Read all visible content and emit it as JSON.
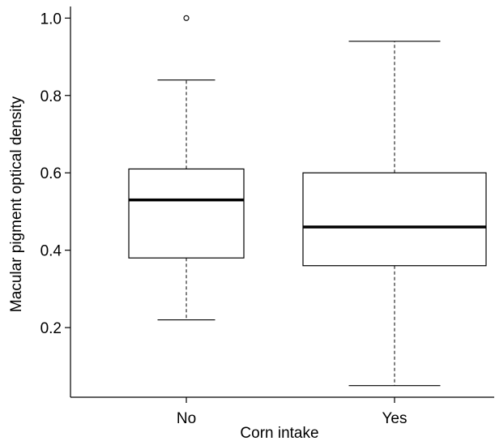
{
  "chart_data": {
    "type": "box",
    "xlabel": "Corn intake",
    "ylabel": "Macular pigment optical density",
    "ylim": [
      0.02,
      1.03
    ],
    "yticks": [
      0.2,
      0.4,
      0.6,
      0.8,
      1.0
    ],
    "ytick_labels": [
      "0.2",
      "0.4",
      "0.6",
      "0.8",
      "1.0"
    ],
    "categories": [
      "No",
      "Yes"
    ],
    "boxes": [
      {
        "category": "No",
        "whisker_low": 0.22,
        "q1": 0.38,
        "median": 0.53,
        "q3": 0.61,
        "whisker_high": 0.84,
        "outliers": [
          1.0
        ]
      },
      {
        "category": "Yes",
        "whisker_low": 0.05,
        "q1": 0.36,
        "median": 0.46,
        "q3": 0.6,
        "whisker_high": 0.94,
        "outliers": []
      }
    ],
    "grid": false,
    "legend": "none"
  }
}
